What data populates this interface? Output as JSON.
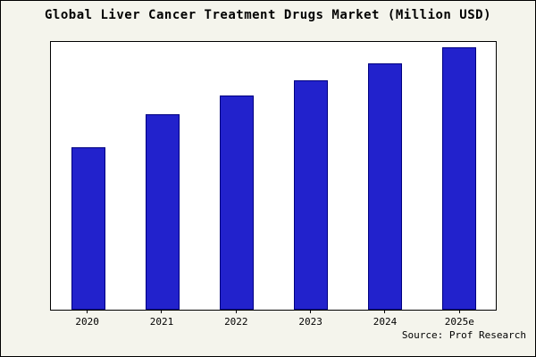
{
  "chart_data": {
    "type": "bar",
    "title": "Global Liver Cancer Treatment Drugs Market (Million USD)",
    "categories": [
      "2020",
      "2021",
      "2022",
      "2023",
      "2024",
      "2025e"
    ],
    "values": [
      62,
      74.5,
      81.5,
      87.5,
      94,
      100
    ],
    "xlabel": "",
    "ylabel": "",
    "ylim": [
      0,
      102
    ],
    "grid": false,
    "legend": null,
    "bar_color": "#2222cc",
    "bar_edge_color": "#000080",
    "background_color": "#f4f4ec",
    "plot_background": "#ffffff"
  },
  "source": "Source: Prof Research"
}
